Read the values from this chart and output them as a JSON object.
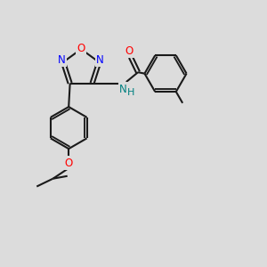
{
  "bg_color": "#dcdcdc",
  "bond_color": "#1a1a1a",
  "N_color": "#0000ff",
  "O_color": "#ff0000",
  "NH_color": "#008080",
  "lw": 1.5,
  "fig_w": 3.0,
  "fig_h": 3.0,
  "dpi": 100,
  "xlim": [
    0,
    10
  ],
  "ylim": [
    0,
    10
  ]
}
